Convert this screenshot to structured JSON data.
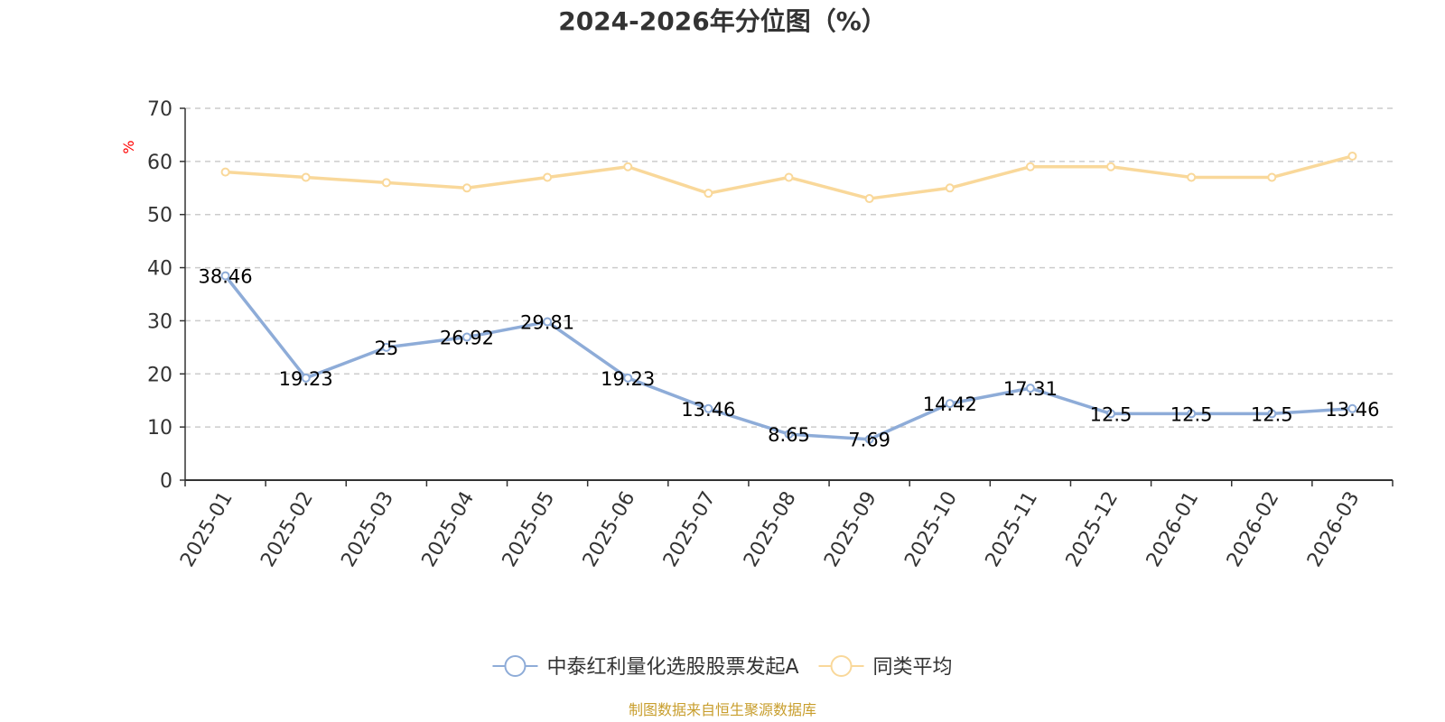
{
  "chart_data": {
    "type": "line",
    "title": "2024-2026年分位图（%）",
    "ylabel": "%",
    "ylim": [
      0,
      70
    ],
    "yticks": [
      0,
      10,
      20,
      30,
      40,
      50,
      60,
      70
    ],
    "grid": true,
    "legend_position": "bottom",
    "categories": [
      "2025-01",
      "2025-02",
      "2025-03",
      "2025-04",
      "2025-05",
      "2025-06",
      "2025-07",
      "2025-08",
      "2025-09",
      "2025-10",
      "2025-11",
      "2025-12",
      "2026-01",
      "2026-02",
      "2026-03"
    ],
    "series": [
      {
        "name": "中泰红利量化选股股票发起A",
        "color": "#8eacd8",
        "show_labels": true,
        "values": [
          38.46,
          19.23,
          25,
          26.92,
          29.81,
          19.23,
          13.46,
          8.65,
          7.69,
          14.42,
          17.31,
          12.5,
          12.5,
          12.5,
          13.46
        ]
      },
      {
        "name": "同类平均",
        "color": "#f9d89a",
        "show_labels": false,
        "values": [
          58,
          57,
          56,
          55,
          57,
          59,
          54,
          57,
          53,
          55,
          59,
          59,
          57,
          57,
          61
        ]
      }
    ]
  },
  "colors": {
    "unit_label": "#ff0000",
    "source_text": "#c89e2d"
  },
  "source": "制图数据来自恒生聚源数据库"
}
